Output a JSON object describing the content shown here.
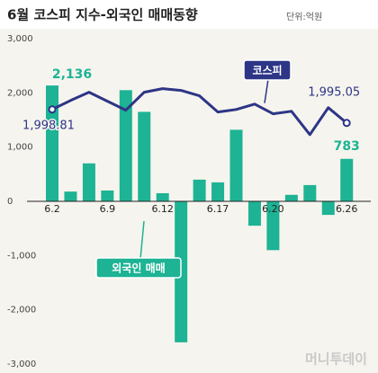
{
  "chart_data": {
    "type": "bar-line",
    "title": "6월 코스피 지수-외국인 매매동향",
    "subtitle": "단위:억원",
    "source": "머니투데이",
    "categories": [
      "6.2",
      null,
      null,
      "6.9",
      null,
      null,
      "6.12",
      null,
      null,
      "6.17",
      null,
      null,
      "6.20",
      null,
      null,
      null,
      "6.26"
    ],
    "series": [
      {
        "name": "외국인 매매",
        "color": "#1db394",
        "values": [
          2136,
          180,
          700,
          200,
          2050,
          1650,
          150,
          -2600,
          400,
          350,
          1320,
          -450,
          -900,
          120,
          300,
          -250,
          783
        ],
        "value_labels": [
          "2,136",
          null,
          null,
          null,
          null,
          null,
          null,
          null,
          null,
          null,
          null,
          null,
          null,
          null,
          null,
          null,
          "783"
        ]
      },
      {
        "name": "코스피",
        "color": "#2d3586",
        "axis": "y2",
        "values": [
          1998.81,
          2001.3,
          2003.6,
          2001.1,
          1998.6,
          2003.6,
          2004.6,
          2004.1,
          2002.6,
          1998.1,
          1998.8,
          2000.3,
          1997.6,
          1998.3,
          1991.8,
          1999.3,
          1995.05
        ],
        "value_labels": [
          "1,998.81",
          null,
          null,
          null,
          null,
          null,
          null,
          null,
          null,
          null,
          null,
          null,
          null,
          null,
          null,
          null,
          "1,995.05"
        ]
      }
    ],
    "ylim": [
      -3000,
      3000
    ],
    "yticks": [
      {
        "value": 3000,
        "label": "3,000"
      },
      {
        "value": 2000,
        "label": "2,000"
      },
      {
        "value": 1000,
        "label": "1,000"
      },
      0,
      {
        "value": -1000,
        "label": "-1,000"
      },
      {
        "value": -2000,
        "label": "-2,000"
      },
      {
        "value": -3000,
        "label": "-3,000"
      }
    ],
    "y2lim": [
      1928,
      2018.5
    ],
    "grid": false
  }
}
